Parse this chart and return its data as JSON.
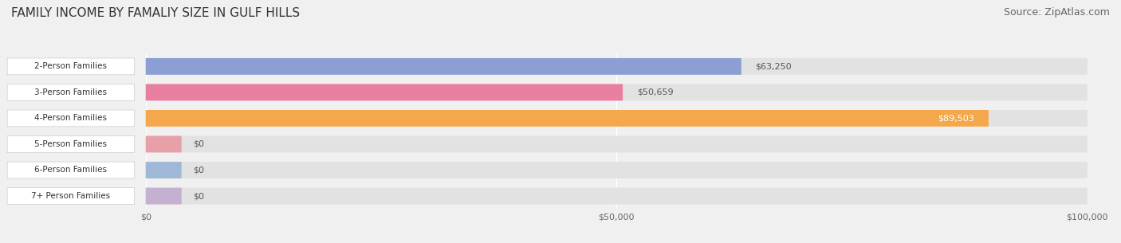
{
  "title": "FAMILY INCOME BY FAMALIY SIZE IN GULF HILLS",
  "source": "Source: ZipAtlas.com",
  "categories": [
    "2-Person Families",
    "3-Person Families",
    "4-Person Families",
    "5-Person Families",
    "6-Person Families",
    "7+ Person Families"
  ],
  "values": [
    63250,
    50659,
    89503,
    0,
    0,
    0
  ],
  "bar_colors": [
    "#8b9fd4",
    "#e87fa0",
    "#f5a84b",
    "#e8a0a8",
    "#a0b8d8",
    "#c4b0d0"
  ],
  "label_colors": [
    "white",
    "black",
    "white",
    "black",
    "black",
    "black"
  ],
  "max_value": 100000,
  "xlabel_ticks": [
    0,
    50000,
    100000
  ],
  "xlabel_labels": [
    "$0",
    "$50,000",
    "$100,000"
  ],
  "background_color": "#f0f0f0",
  "bar_background_color": "#e2e2e2",
  "title_fontsize": 11,
  "source_fontsize": 9,
  "bar_height": 0.62,
  "figsize": [
    14.06,
    3.05
  ],
  "dpi": 100
}
